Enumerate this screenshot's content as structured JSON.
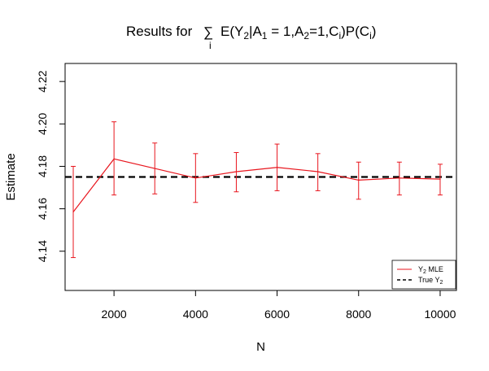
{
  "chart_data": {
    "type": "line",
    "title": {
      "prefix": "Results for ",
      "sum_symbol": "∑",
      "sum_subscript": "i",
      "expression": [
        {
          "t": "E(Y"
        },
        {
          "s": "2"
        },
        {
          "t": "|A"
        },
        {
          "s": "1"
        },
        {
          "t": " = 1,A"
        },
        {
          "s": "2"
        },
        {
          "t": "=1,C"
        },
        {
          "s": "i"
        },
        {
          "t": ")P(C"
        },
        {
          "s": "i"
        },
        {
          "t": ")"
        }
      ]
    },
    "xlabel": "N",
    "ylabel": "Estimate",
    "xlim": [
      800,
      10400
    ],
    "ylim": [
      4.1215,
      4.2285
    ],
    "x_ticks": [
      2000,
      4000,
      6000,
      8000,
      10000
    ],
    "x_tick_labels": [
      "2000",
      "4000",
      "6000",
      "8000",
      "10000"
    ],
    "y_ticks": [
      4.14,
      4.16,
      4.18,
      4.2,
      4.22
    ],
    "y_tick_labels": [
      "4.14",
      "4.16",
      "4.18",
      "4.20",
      "4.22"
    ],
    "series": [
      {
        "name": "Y2 MLE",
        "color": "#e8161e",
        "x": [
          1000,
          2000,
          3000,
          4000,
          5000,
          6000,
          7000,
          8000,
          9000,
          10000
        ],
        "values": [
          4.1585,
          4.1835,
          4.179,
          4.1745,
          4.1775,
          4.1795,
          4.1775,
          4.1735,
          4.1745,
          4.174
        ],
        "lower": [
          4.137,
          4.1665,
          4.167,
          4.163,
          4.168,
          4.1685,
          4.1685,
          4.1645,
          4.1665,
          4.1665
        ],
        "upper": [
          4.18,
          4.201,
          4.191,
          4.186,
          4.1865,
          4.1905,
          4.186,
          4.182,
          4.182,
          4.181
        ]
      }
    ],
    "reference_line": {
      "name": "True Y2",
      "value": 4.175,
      "color": "#000000",
      "style": "dashed"
    },
    "legend": {
      "placement": "bottom-right",
      "entries": [
        {
          "base": "Y",
          "sub": "2",
          "rest": " MLE",
          "color": "#e8161e",
          "style": "solid"
        },
        {
          "base": "True Y",
          "sub": "2",
          "rest": "",
          "color": "#000000",
          "style": "dashed"
        }
      ]
    },
    "grid": false
  }
}
